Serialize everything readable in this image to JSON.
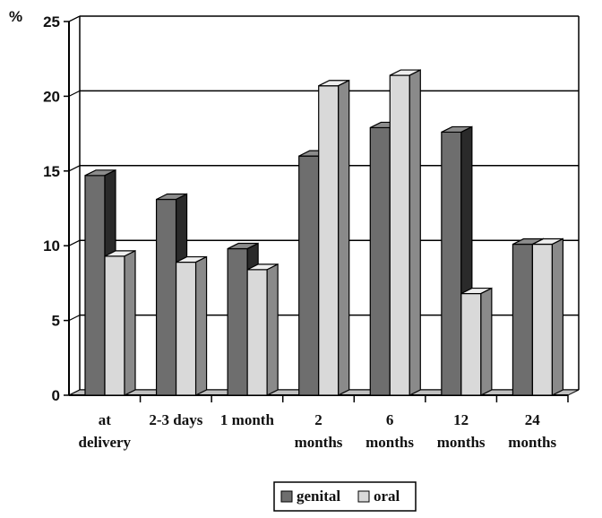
{
  "chart_data": {
    "type": "bar",
    "title": "",
    "ylabel": "%",
    "xlabel": "",
    "ylim": [
      0,
      25
    ],
    "yticks": [
      0,
      5,
      10,
      15,
      20,
      25
    ],
    "categories": [
      [
        "at",
        "delivery"
      ],
      [
        "2-3 days"
      ],
      [
        "1 month"
      ],
      [
        "2",
        "months"
      ],
      [
        "6",
        "months"
      ],
      [
        "12",
        "months"
      ],
      [
        "24",
        "months"
      ]
    ],
    "series": [
      {
        "name": "genital",
        "values": [
          14.7,
          13.1,
          9.8,
          16.0,
          17.9,
          17.6,
          10.1
        ]
      },
      {
        "name": "oral",
        "values": [
          9.3,
          8.9,
          8.4,
          20.7,
          21.4,
          6.8,
          10.1
        ]
      }
    ],
    "grid": true,
    "legend_position": "bottom",
    "colors": {
      "genital": "#6e6e6e",
      "oral": "#d9d9d9"
    }
  }
}
